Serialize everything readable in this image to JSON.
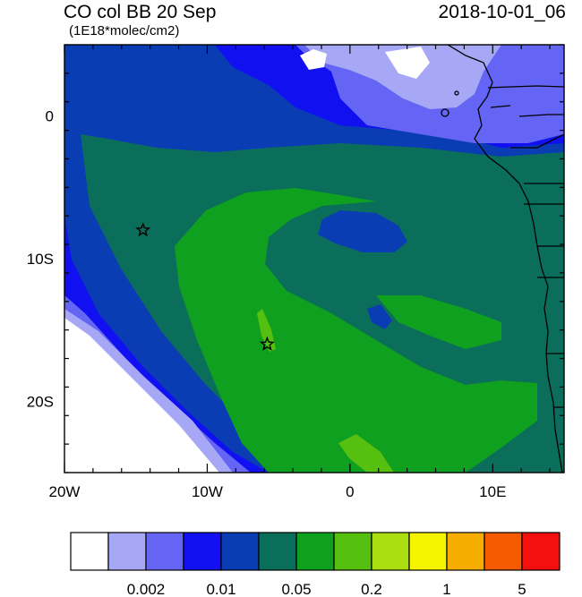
{
  "header": {
    "title": "CO col BB 20 Sep",
    "timestamp": "2018-10-01_06",
    "units": "(1E18*molec/cm2)"
  },
  "map": {
    "lon_range": [
      -20,
      15
    ],
    "lat_range": [
      -25,
      5
    ],
    "x_ticks": [
      {
        "lon": -20,
        "label": "20W"
      },
      {
        "lon": -10,
        "label": "10W"
      },
      {
        "lon": 0,
        "label": "0"
      },
      {
        "lon": 10,
        "label": "10E"
      }
    ],
    "y_ticks": [
      {
        "lat": 0,
        "label": "0"
      },
      {
        "lat": -10,
        "label": "10S"
      },
      {
        "lat": -20,
        "label": "20S"
      }
    ],
    "markers": [
      {
        "type": "star",
        "lon": -14.5,
        "lat": -8
      },
      {
        "type": "star",
        "lon": -5.8,
        "lat": -16
      }
    ]
  },
  "colorbar": {
    "colors": [
      "#ffffff",
      "#a6a8f5",
      "#6464f5",
      "#1010f0",
      "#0a3cb4",
      "#0a6e5a",
      "#10a020",
      "#55c010",
      "#aade10",
      "#f5f500",
      "#f5ae00",
      "#f55a00",
      "#f51010"
    ],
    "labels": [
      {
        "after_box": 2,
        "text": "0.002"
      },
      {
        "after_box": 4,
        "text": "0.01"
      },
      {
        "after_box": 6,
        "text": "0.05"
      },
      {
        "after_box": 8,
        "text": "0.2"
      },
      {
        "after_box": 10,
        "text": "1"
      },
      {
        "after_box": 12,
        "text": "5"
      }
    ]
  }
}
